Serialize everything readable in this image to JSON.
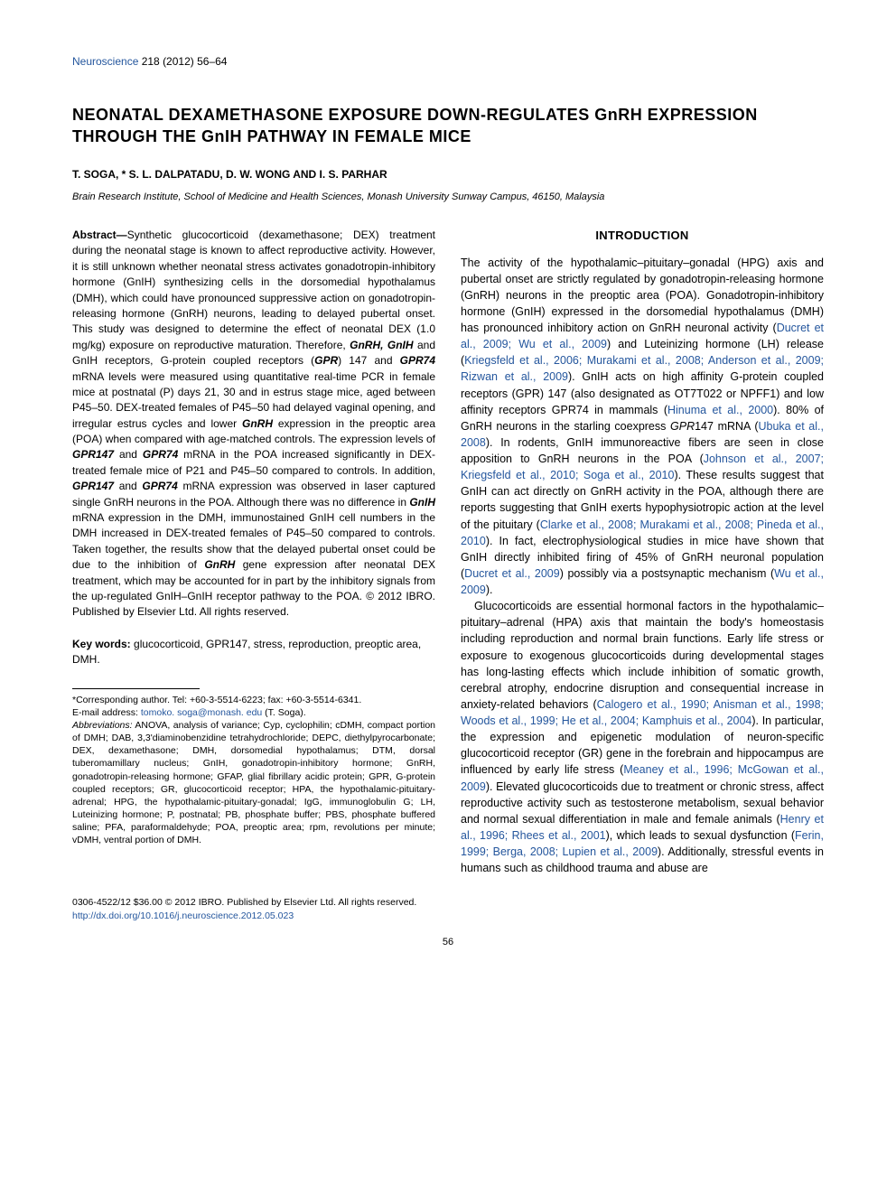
{
  "journal": {
    "name": "Neuroscience",
    "citation": " 218 (2012) 56–64"
  },
  "title": "NEONATAL DEXAMETHASONE EXPOSURE DOWN-REGULATES GnRH EXPRESSION THROUGH THE GnIH PATHWAY IN FEMALE MICE",
  "authors": "T. SOGA, * S. L. DALPATADU, D. W. WONG AND I. S. PARHAR",
  "affiliation": "Brain Research Institute, School of Medicine and Health Sciences, Monash University Sunway Campus, 46150, Malaysia",
  "abstract": {
    "label": "Abstract—",
    "text": "Synthetic glucocorticoid (dexamethasone; DEX) treatment during the neonatal stage is known to affect reproductive activity. However, it is still unknown whether neonatal stress activates gonadotropin-inhibitory hormone (GnIH) synthesizing cells in the dorsomedial hypothalamus (DMH), which could have pronounced suppressive action on gonadotropin-releasing hormone (GnRH) neurons, leading to delayed pubertal onset. This study was designed to determine the effect of neonatal DEX (1.0 mg/kg) exposure on reproductive maturation. Therefore, ",
    "genes1": "GnRH, GnIH",
    "text2": " and GnIH receptors, G-protein coupled receptors (",
    "genes2": "GPR",
    "text3": ") 147 and ",
    "genes3": "GPR74",
    "text4": " mRNA levels were measured using quantitative real-time PCR in female mice at postnatal (P) days 21, 30 and in estrus stage mice, aged between P45–50. DEX-treated females of P45–50 had delayed vaginal opening, and irregular estrus cycles and lower ",
    "genes4": "GnRH",
    "text5": " expression in the preoptic area (POA) when compared with age-matched controls. The expression levels of ",
    "genes5": "GPR147",
    "text6": " and ",
    "genes6": "GPR74",
    "text7": " mRNA in the POA increased significantly in DEX-treated female mice of P21 and P45–50 compared to controls. In addition, ",
    "genes7": "GPR147",
    "text8": " and ",
    "genes8": "GPR74",
    "text9": " mRNA expression was observed in laser captured single GnRH neurons in the POA. Although there was no difference in ",
    "genes9": "GnIH",
    "text10": " mRNA expression in the DMH, immunostained GnIH cell numbers in the DMH increased in DEX-treated females of P45–50 compared to controls. Taken together, the results show that the delayed pubertal onset could be due to the inhibition of ",
    "genes10": "GnRH",
    "text11": " gene expression after neonatal DEX treatment, which may be accounted for in part by the inhibitory signals from the up-regulated GnIH–GnIH receptor pathway to the POA. © 2012 IBRO. Published by Elsevier Ltd. All rights reserved."
  },
  "keywords": {
    "label": "Key words: ",
    "text": "glucocorticoid, GPR147, stress, reproduction, preoptic area, DMH."
  },
  "footnote": {
    "corresponding": "*Corresponding author. Tel: +60-3-5514-6223; fax: +60-3-5514-6341.",
    "email_label": "E-mail address: ",
    "email": "tomoko. soga@monash. edu",
    "email_paren": " (T. Soga).",
    "abbrev_label": "Abbreviations:",
    "abbrev_text": " ANOVA, analysis of variance; Cyp, cyclophilin; cDMH, compact portion of DMH; DAB, 3,3'diaminobenzidine tetrahydrochloride; DEPC, diethylpyrocarbonate; DEX, dexamethasone; DMH, dorsomedial hypothalamus; DTM, dorsal tuberomamillary nucleus; GnIH, gonadotropin-inhibitory hormone; GnRH, gonadotropin-releasing hormone; GFAP, glial fibrillary acidic protein; GPR, G-protein coupled receptors; GR, glucocorticoid receptor; HPA, the hypothalamic-pituitary-adrenal; HPG, the hypothalamic-pituitary-gonadal; IgG, immunoglobulin G; LH, Luteinizing hormone; P, postnatal; PB, phosphate buffer; PBS, phosphate buffered saline; PFA, paraformaldehyde; POA, preoptic area; rpm, revolutions per minute; vDMH, ventral portion of DMH."
  },
  "intro": {
    "heading": "INTRODUCTION",
    "p1a": "The activity of the hypothalamic–pituitary–gonadal (HPG) axis and pubertal onset are strictly regulated by gonadotropin-releasing hormone (GnRH) neurons in the preoptic area (POA). Gonadotropin-inhibitory hormone (GnIH) expressed in the dorsomedial hypothalamus (DMH) has pronounced inhibitory action on GnRH neuronal activity (",
    "r1": "Ducret et al., 2009; Wu et al., 2009",
    "p1b": ") and Luteinizing hormone (LH) release (",
    "r2": "Kriegsfeld et al., 2006; Murakami et al., 2008; Anderson et al., 2009; Rizwan et al., 2009",
    "p1c": "). GnIH acts on high affinity G-protein coupled receptors (GPR) 147 (also designated as OT7T022 or NPFF1) and low affinity receptors GPR74 in mammals (",
    "r3": "Hinuma et al., 2000",
    "p1d": "). 80% of GnRH neurons in the starling coexpress ",
    "g1": "GPR",
    "p1e": "147 mRNA (",
    "r4": "Ubuka et al., 2008",
    "p1f": "). In rodents, GnIH immunoreactive fibers are seen in close apposition to GnRH neurons in the POA (",
    "r5": "Johnson et al., 2007; Kriegsfeld et al., 2010; Soga et al., 2010",
    "p1g": "). These results suggest that GnIH can act directly on GnRH activity in the POA, although there are reports suggesting that GnIH exerts hypophysiotropic action at the level of the pituitary (",
    "r6": "Clarke et al., 2008; Murakami et al., 2008; Pineda et al., 2010",
    "p1h": "). In fact, electrophysiological studies in mice have shown that GnIH directly inhibited firing of 45% of GnRH neuronal population (",
    "r7": "Ducret et al., 2009",
    "p1i": ") possibly via a postsynaptic mechanism (",
    "r8": "Wu et al., 2009",
    "p1j": ").",
    "p2a": "Glucocorticoids are essential hormonal factors in the hypothalamic–pituitary–adrenal (HPA) axis that maintain the body's homeostasis including reproduction and normal brain functions. Early life stress or exposure to exogenous glucocorticoids during developmental stages has long-lasting effects which include inhibition of somatic growth, cerebral atrophy, endocrine disruption and consequential increase in anxiety-related behaviors (",
    "r9": "Calogero et al., 1990; Anisman et al., 1998; Woods et al., 1999; He et al., 2004; Kamphuis et al., 2004",
    "p2b": "). In particular, the expression and epigenetic modulation of neuron-specific glucocorticoid receptor (GR) gene in the forebrain and hippocampus are influenced by early life stress (",
    "r10": "Meaney et al., 1996; McGowan et al., 2009",
    "p2c": "). Elevated glucocorticoids due to treatment or chronic stress, affect reproductive activity such as testosterone metabolism, sexual behavior and normal sexual differentiation in male and female animals (",
    "r11": "Henry et al., 1996; Rhees et al., 2001",
    "p2d": "), which leads to sexual dysfunction (",
    "r12": "Ferin, 1999; Berga, 2008; Lupien et al., 2009",
    "p2e": "). Additionally, stressful events in humans such as childhood trauma and abuse are"
  },
  "footer": {
    "line1": "0306-4522/12 $36.00 © 2012 IBRO. Published by Elsevier Ltd. All rights reserved.",
    "doi": "http://dx.doi.org/10.1016/j.neuroscience.2012.05.023"
  },
  "page_number": "56"
}
